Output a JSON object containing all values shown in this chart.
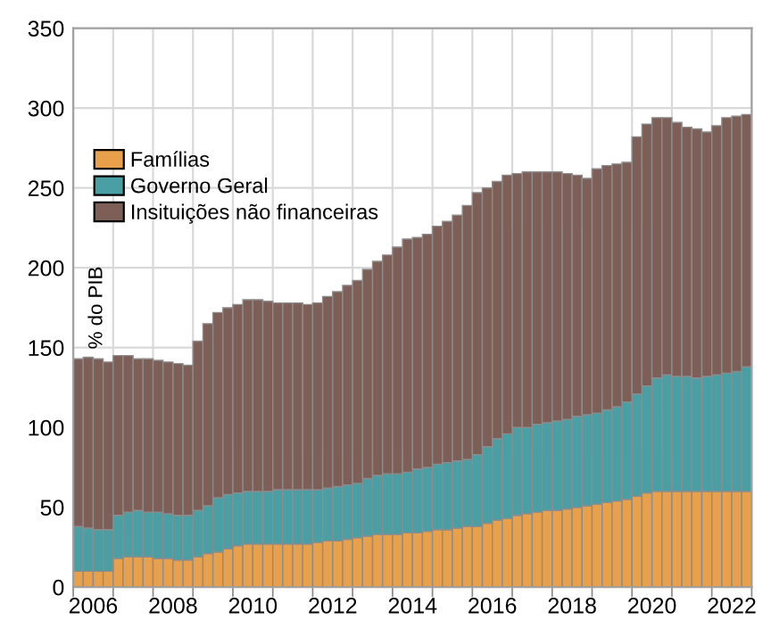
{
  "chart_data": {
    "type": "bar",
    "stacked": true,
    "ylabel": "% do PIB",
    "x": [
      2006.125,
      2006.375,
      2006.625,
      2006.875,
      2007.125,
      2007.375,
      2007.625,
      2007.875,
      2008.125,
      2008.375,
      2008.625,
      2008.875,
      2009.125,
      2009.375,
      2009.625,
      2009.875,
      2010.125,
      2010.375,
      2010.625,
      2010.875,
      2011.125,
      2011.375,
      2011.625,
      2011.875,
      2012.125,
      2012.375,
      2012.625,
      2012.875,
      2013.125,
      2013.375,
      2013.625,
      2013.875,
      2014.125,
      2014.375,
      2014.625,
      2014.875,
      2015.125,
      2015.375,
      2015.625,
      2015.875,
      2016.125,
      2016.375,
      2016.625,
      2016.875,
      2017.125,
      2017.375,
      2017.625,
      2017.875,
      2018.125,
      2018.375,
      2018.625,
      2018.875,
      2019.125,
      2019.375,
      2019.625,
      2019.875,
      2020.125,
      2020.375,
      2020.625,
      2020.875,
      2021.125,
      2021.375,
      2021.625,
      2021.875,
      2022.125,
      2022.375,
      2022.625,
      2022.875
    ],
    "series": [
      {
        "name": "Famílias",
        "color": "#e8a04a",
        "values": [
          10,
          10,
          10,
          10,
          18,
          19,
          19,
          19,
          18,
          18,
          17,
          17,
          19,
          21,
          22,
          24,
          26,
          27,
          27,
          27,
          27,
          27,
          27,
          27,
          28,
          29,
          29,
          30,
          31,
          32,
          33,
          33,
          33,
          34,
          34,
          35,
          36,
          36,
          37,
          38,
          38,
          40,
          42,
          43,
          45,
          46,
          47,
          48,
          48,
          49,
          50,
          51,
          52,
          53,
          54,
          55,
          57,
          59,
          60,
          60,
          60,
          60,
          60,
          60,
          60,
          60,
          60,
          60
        ]
      },
      {
        "name": "Governo Geral",
        "color": "#4a9fa5",
        "values": [
          28,
          27,
          26,
          26,
          27,
          28,
          29,
          28,
          29,
          28,
          28,
          28,
          29,
          30,
          34,
          34,
          33,
          33,
          33,
          33,
          34,
          34,
          34,
          34,
          33,
          33,
          34,
          34,
          34,
          36,
          37,
          38,
          38,
          38,
          40,
          40,
          41,
          42,
          42,
          42,
          45,
          48,
          51,
          53,
          55,
          54,
          55,
          55,
          56,
          56,
          57,
          57,
          57,
          58,
          59,
          61,
          64,
          67,
          71,
          73,
          72,
          72,
          71,
          72,
          73,
          74,
          75,
          78
        ]
      },
      {
        "name": "Insituições não financeiras",
        "color": "#7d5f57",
        "values": [
          105,
          107,
          107,
          105,
          100,
          98,
          95,
          96,
          95,
          95,
          95,
          94,
          106,
          114,
          116,
          117,
          118,
          120,
          120,
          119,
          117,
          117,
          117,
          116,
          117,
          120,
          122,
          125,
          127,
          131,
          134,
          137,
          142,
          146,
          145,
          146,
          149,
          151,
          154,
          159,
          164,
          162,
          161,
          162,
          159,
          160,
          158,
          157,
          156,
          154,
          151,
          148,
          153,
          153,
          152,
          150,
          161,
          164,
          163,
          161,
          159,
          156,
          156,
          153,
          156,
          160,
          160,
          158
        ]
      }
    ],
    "xlim": [
      2006,
      2023
    ],
    "xticks": [
      {
        "value": 2006,
        "label": null
      },
      {
        "value": 2006.5,
        "label": "2006"
      },
      {
        "value": 2007,
        "label": null
      },
      {
        "value": 2008,
        "label": null
      },
      {
        "value": 2008.5,
        "label": "2008"
      },
      {
        "value": 2009,
        "label": null
      },
      {
        "value": 2010,
        "label": null
      },
      {
        "value": 2010.5,
        "label": "2010"
      },
      {
        "value": 2011,
        "label": null
      },
      {
        "value": 2012,
        "label": null
      },
      {
        "value": 2012.5,
        "label": "2012"
      },
      {
        "value": 2013,
        "label": null
      },
      {
        "value": 2014,
        "label": null
      },
      {
        "value": 2014.5,
        "label": "2014"
      },
      {
        "value": 2015,
        "label": null
      },
      {
        "value": 2016,
        "label": null
      },
      {
        "value": 2016.5,
        "label": "2016"
      },
      {
        "value": 2017,
        "label": null
      },
      {
        "value": 2018,
        "label": null
      },
      {
        "value": 2018.5,
        "label": "2018"
      },
      {
        "value": 2019,
        "label": null
      },
      {
        "value": 2020,
        "label": null
      },
      {
        "value": 2020.5,
        "label": "2020"
      },
      {
        "value": 2021,
        "label": null
      },
      {
        "value": 2022,
        "label": null
      },
      {
        "value": 2022.5,
        "label": "2022"
      },
      {
        "value": 2023,
        "label": null
      }
    ],
    "ylim": [
      0,
      350
    ],
    "yticks": [
      0,
      50,
      100,
      150,
      200,
      250,
      300,
      350
    ],
    "grid": true,
    "legend": "top left"
  }
}
